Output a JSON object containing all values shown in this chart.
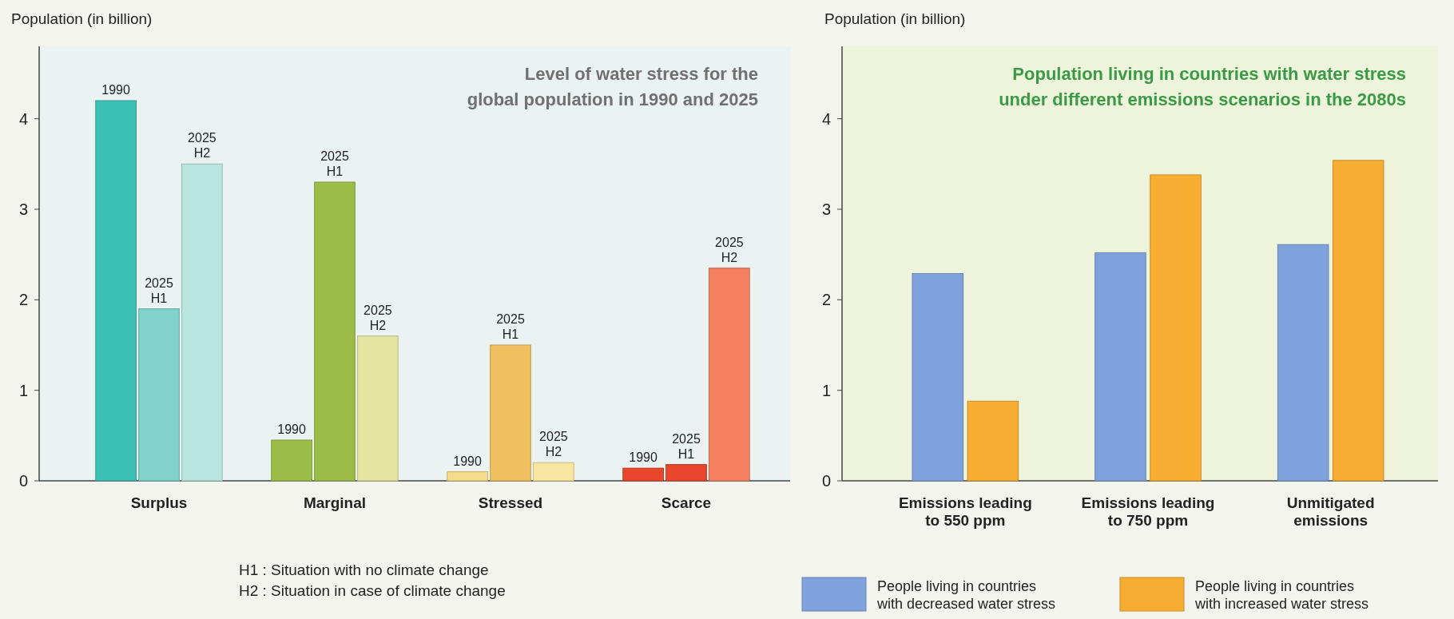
{
  "chart_data": [
    {
      "type": "bar",
      "title": "Level of water stress for the global population in 1990 and 2025",
      "ylabel": "Population (in billion)",
      "categories": [
        "Surplus",
        "Marginal",
        "Stressed",
        "Scarce"
      ],
      "series": [
        {
          "name": "1990",
          "colors": [
            "#3cbfb4",
            "#9cbc48",
            "#f5dc8a",
            "#e8452a"
          ],
          "values": [
            4.2,
            0.45,
            0.1,
            0.14
          ]
        },
        {
          "name": "2025 H1",
          "colors": [
            "#7fd3cc",
            "#9cbc48",
            "#f0c060",
            "#e8452a"
          ],
          "values": [
            1.9,
            3.3,
            1.5,
            0.18
          ]
        },
        {
          "name": "2025 H2",
          "colors": [
            "#b8e6df",
            "#e2e5a0",
            "#f8e6a0",
            "#f58060"
          ],
          "values": [
            3.5,
            1.6,
            0.2,
            2.35
          ]
        }
      ],
      "ylim": [
        0,
        4.8
      ],
      "yticks": [
        0,
        1,
        2,
        3,
        4
      ],
      "annotations": [
        "H1 : Situation with no climate change",
        "H2 : Situation in case of climate change"
      ]
    },
    {
      "type": "bar",
      "title": "Population living in countries with water stress under different emissions scenarios in the 2080s",
      "ylabel": "Population (in billion)",
      "categories": [
        "Emissions leading to 550 ppm",
        "Emissions leading to 750 ppm",
        "Unmitigated emissions"
      ],
      "series": [
        {
          "name": "People living in countries with decreased water stress",
          "color": "#7ea3dc",
          "values": [
            2.29,
            2.52,
            2.61
          ]
        },
        {
          "name": "People living in countries with increased water stress",
          "color": "#f6ad32",
          "values": [
            0.88,
            3.38,
            3.54
          ]
        }
      ],
      "ylim": [
        0,
        4.8
      ],
      "yticks": [
        0,
        1,
        2,
        3,
        4
      ],
      "legend": "bottom"
    }
  ]
}
